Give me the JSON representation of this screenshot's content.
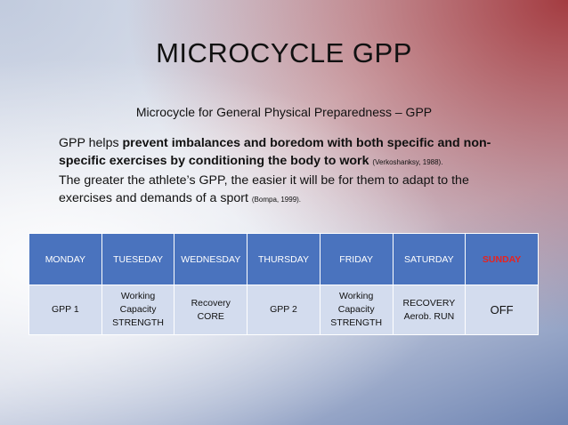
{
  "slide": {
    "title": "MICROCYCLE  GPP",
    "subtitle": "Microcycle for General Physical Preparedness – GPP",
    "p1_pre": "GPP helps ",
    "p1_bold": "prevent imbalances and boredom with both specific and non-specific exercises by conditioning the body to work",
    "p1_cite": "(Verkoshanksy, 1988).",
    "p2": "The greater the athlete’s GPP, the easier it will be for them to adapt to the exercises and demands of a sport",
    "p2_cite": "(Bompa, 1999)."
  },
  "table": {
    "headers": [
      "MONDAY",
      "TUESEDAY",
      "WEDNESDAY",
      "THURSDAY",
      "FRIDAY",
      "SATURDAY",
      "SUNDAY"
    ],
    "cells": [
      [
        "GPP 1"
      ],
      [
        "Working",
        "Capacity",
        "STRENGTH"
      ],
      [
        "Recovery",
        "CORE"
      ],
      [
        "GPP 2"
      ],
      [
        "Working",
        "Capacity",
        "STRENGTH"
      ],
      [
        "RECOVERY",
        "Aerob. RUN"
      ],
      [
        "OFF"
      ]
    ]
  },
  "colors": {
    "header_bg": "#4a73be",
    "cell_bg": "#d3dcee",
    "sunday_text": "#e8231f"
  }
}
